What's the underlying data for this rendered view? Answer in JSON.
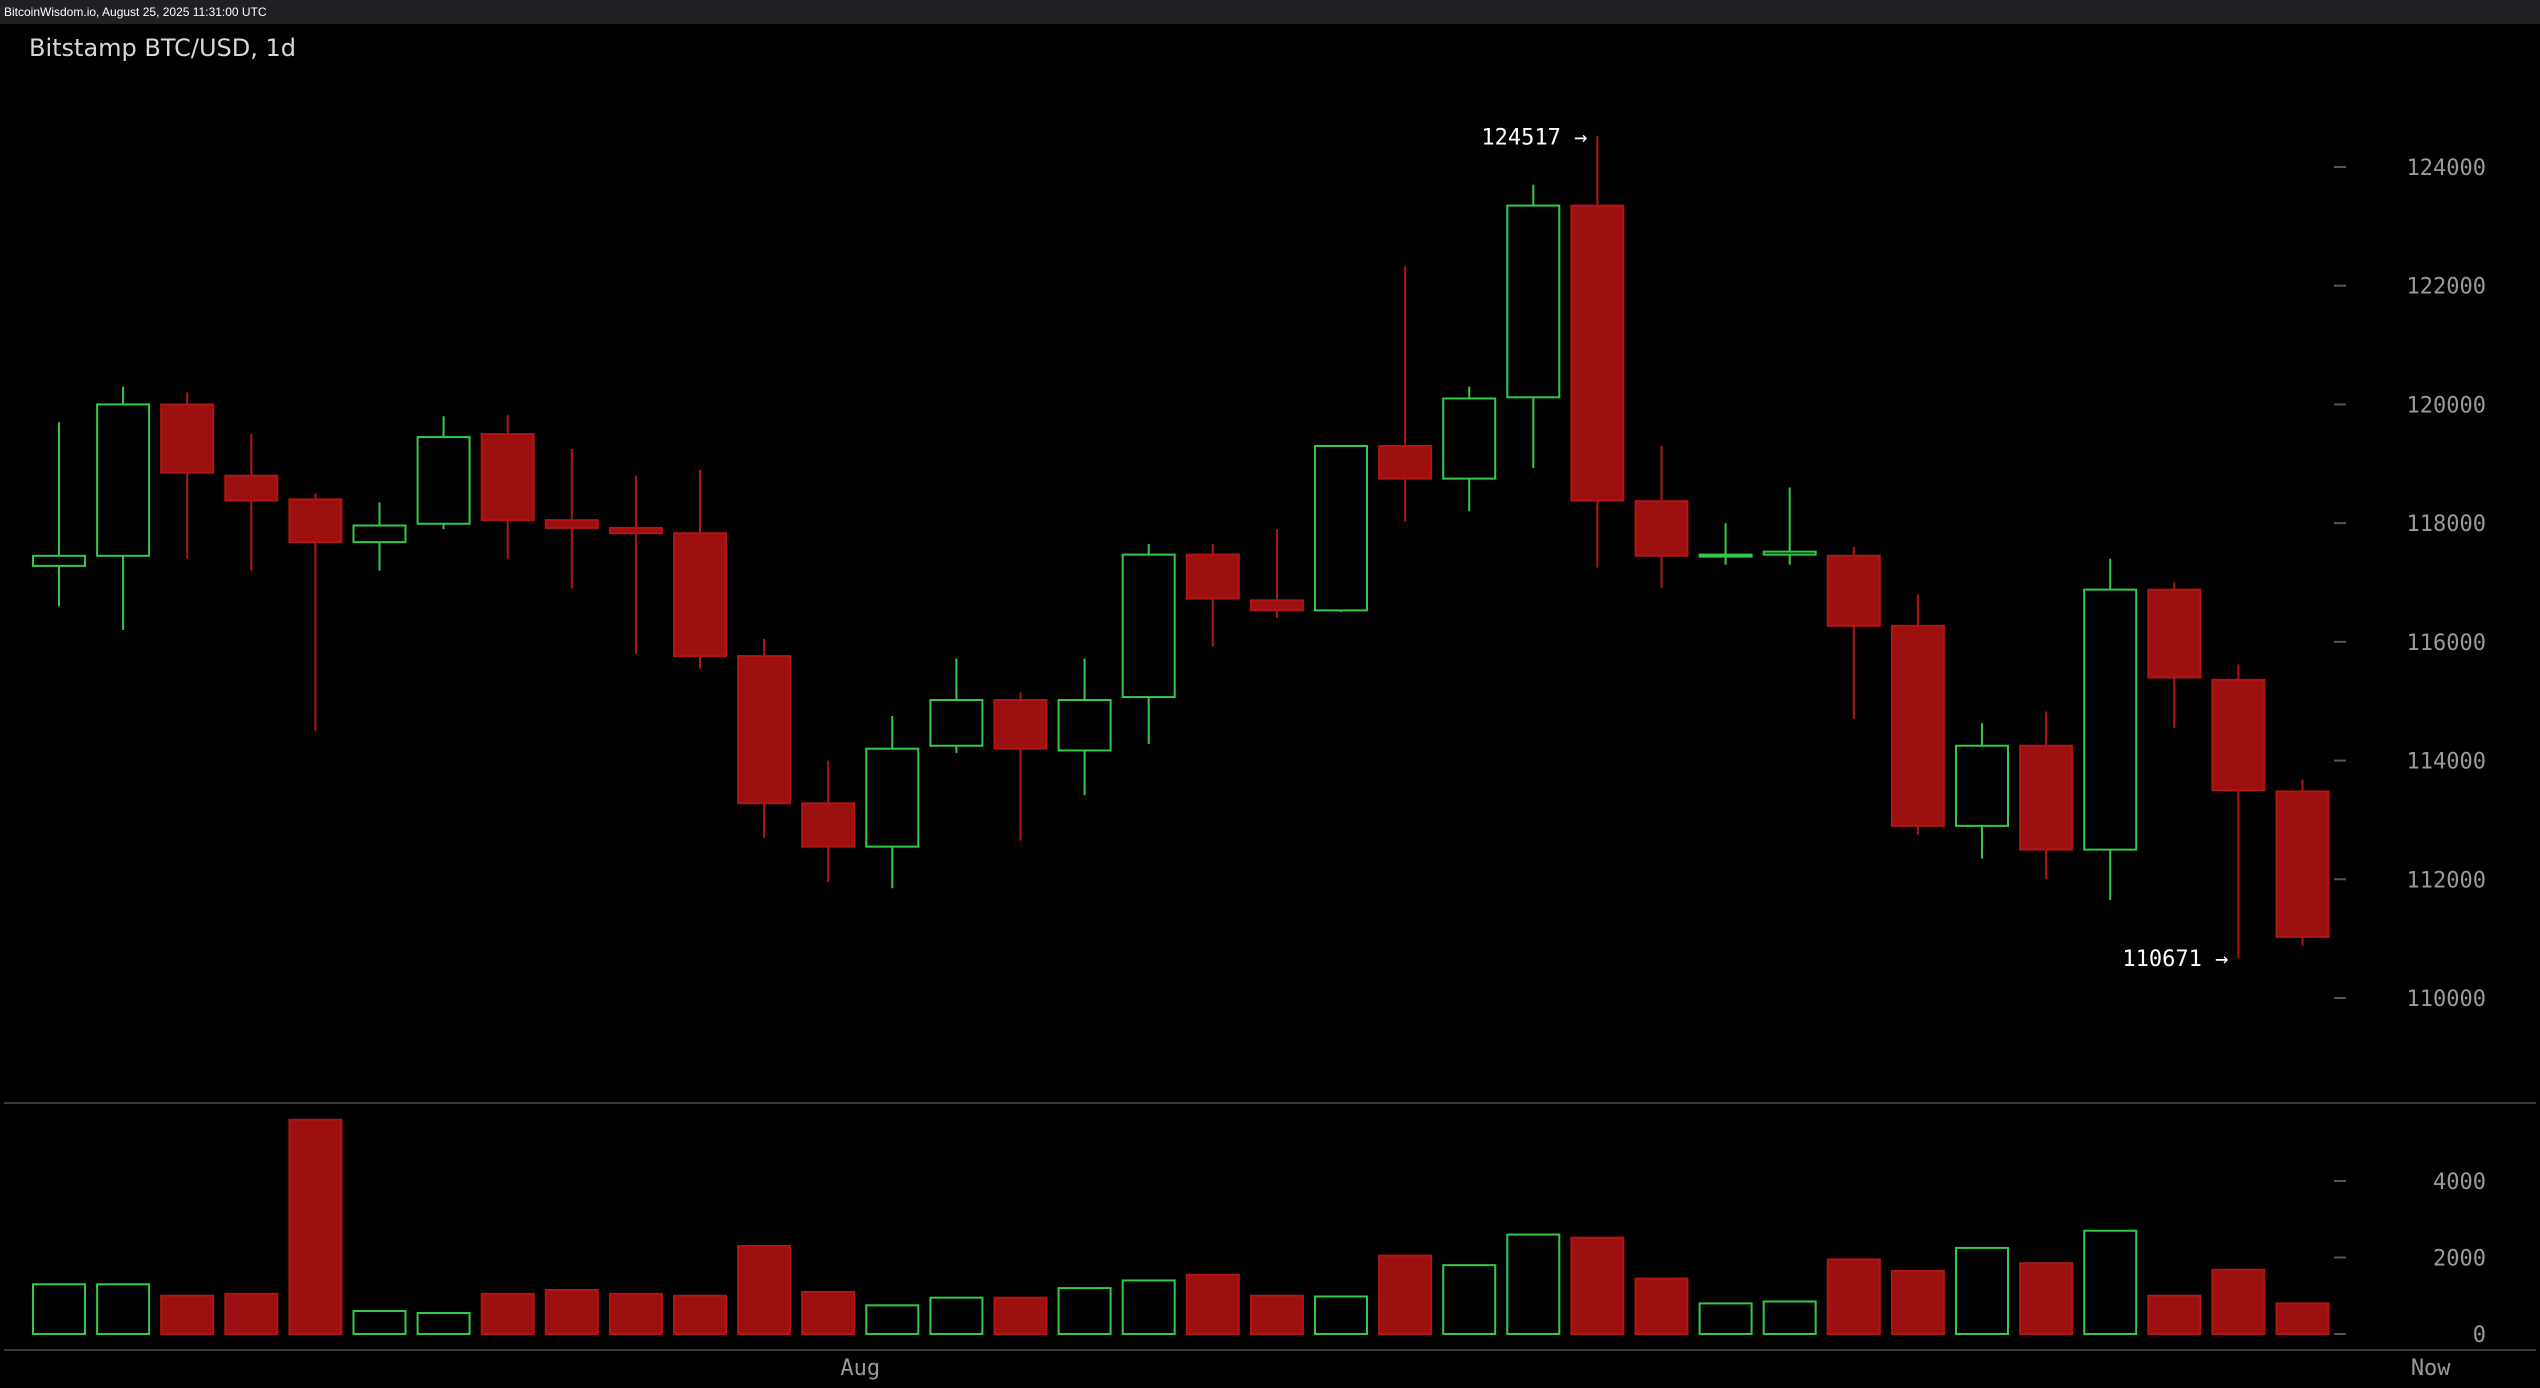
{
  "header": {
    "source_line": "BitcoinWisdom.io, August 25, 2025 11:31:00 UTC",
    "title": "Bitstamp BTC/USD, 1d"
  },
  "colors": {
    "up": "#35c94a",
    "down": "#b01616",
    "down_fill": "#9c1010",
    "background": "#000000",
    "axis_text": "#9a9a9a",
    "annotation": "#ffffff",
    "separator": "#3a3a3a"
  },
  "chart_data": [
    {
      "type": "candlestick",
      "title": "Bitstamp BTC/USD, 1d",
      "ylim": [
        108000,
        125800
      ],
      "y_ticks": [
        110000,
        112000,
        114000,
        116000,
        118000,
        120000,
        122000,
        124000
      ],
      "y_tick_labels": [
        "110000",
        "112000",
        "114000",
        "116000",
        "118000",
        "120000",
        "122000",
        "124000"
      ],
      "grid": false,
      "candles": [
        {
          "o": 117280,
          "h": 119700,
          "l": 116600,
          "c": 117450
        },
        {
          "o": 117450,
          "h": 120300,
          "l": 116200,
          "c": 120000
        },
        {
          "o": 120000,
          "h": 120200,
          "l": 117400,
          "c": 118850
        },
        {
          "o": 118800,
          "h": 119500,
          "l": 117200,
          "c": 118380
        },
        {
          "o": 118400,
          "h": 118500,
          "l": 114500,
          "c": 117680
        },
        {
          "o": 117680,
          "h": 118350,
          "l": 117200,
          "c": 117960
        },
        {
          "o": 117990,
          "h": 119800,
          "l": 117900,
          "c": 119450
        },
        {
          "o": 119500,
          "h": 119820,
          "l": 117400,
          "c": 118050
        },
        {
          "o": 118050,
          "h": 119250,
          "l": 116900,
          "c": 117920
        },
        {
          "o": 117920,
          "h": 118800,
          "l": 115800,
          "c": 117830
        },
        {
          "o": 117830,
          "h": 118900,
          "l": 115550,
          "c": 115760
        },
        {
          "o": 115760,
          "h": 116050,
          "l": 112700,
          "c": 113280
        },
        {
          "o": 113280,
          "h": 114000,
          "l": 111950,
          "c": 112550
        },
        {
          "o": 112550,
          "h": 114750,
          "l": 111850,
          "c": 114200
        },
        {
          "o": 114250,
          "h": 115720,
          "l": 114130,
          "c": 115020
        },
        {
          "o": 115020,
          "h": 115150,
          "l": 112650,
          "c": 114200
        },
        {
          "o": 114170,
          "h": 115720,
          "l": 113420,
          "c": 115020
        },
        {
          "o": 115070,
          "h": 117650,
          "l": 114280,
          "c": 117470
        },
        {
          "o": 117470,
          "h": 117650,
          "l": 115920,
          "c": 116730
        },
        {
          "o": 116700,
          "h": 117900,
          "l": 116400,
          "c": 116530
        },
        {
          "o": 116530,
          "h": 119300,
          "l": 116500,
          "c": 119300
        },
        {
          "o": 119300,
          "h": 122330,
          "l": 118030,
          "c": 118750
        },
        {
          "o": 118750,
          "h": 120300,
          "l": 118200,
          "c": 120100
        },
        {
          "o": 120120,
          "h": 123700,
          "l": 118930,
          "c": 123350
        },
        {
          "o": 123350,
          "h": 124517,
          "l": 117250,
          "c": 118380
        },
        {
          "o": 118370,
          "h": 119300,
          "l": 116900,
          "c": 117450
        },
        {
          "o": 117450,
          "h": 118000,
          "l": 117300,
          "c": 117470
        },
        {
          "o": 117470,
          "h": 118600,
          "l": 117300,
          "c": 117520
        },
        {
          "o": 117450,
          "h": 117600,
          "l": 114700,
          "c": 116270
        },
        {
          "o": 116270,
          "h": 116800,
          "l": 112750,
          "c": 112900
        },
        {
          "o": 112900,
          "h": 114630,
          "l": 112350,
          "c": 114250
        },
        {
          "o": 114250,
          "h": 114830,
          "l": 112000,
          "c": 112500
        },
        {
          "o": 112500,
          "h": 117400,
          "l": 111650,
          "c": 116880
        },
        {
          "o": 116880,
          "h": 117000,
          "l": 114550,
          "c": 115400
        },
        {
          "o": 115360,
          "h": 115620,
          "l": 110671,
          "c": 113500
        },
        {
          "o": 113480,
          "h": 113680,
          "l": 110880,
          "c": 111030
        }
      ],
      "annotations": [
        {
          "text": "124517 →",
          "value": 124517,
          "candle": 24
        },
        {
          "text": "110671 →",
          "value": 110671,
          "candle": 34
        }
      ]
    },
    {
      "type": "bar",
      "title": "",
      "ylim": [
        0,
        5600
      ],
      "y_ticks": [
        0,
        2000,
        4000
      ],
      "y_tick_labels": [
        "0",
        "2000",
        "4000"
      ],
      "x_tick_labels": [
        {
          "label": "Aug",
          "candle": 12.5
        },
        {
          "label": "Now",
          "candle": 37
        }
      ],
      "values": [
        1300,
        1300,
        1000,
        1050,
        5600,
        600,
        550,
        1050,
        1150,
        1050,
        1000,
        2300,
        1100,
        750,
        950,
        950,
        1200,
        1400,
        1550,
        1000,
        980,
        2050,
        1800,
        2600,
        2520,
        1450,
        800,
        850,
        1950,
        1650,
        2250,
        1850,
        2700,
        1000,
        1680,
        800
      ],
      "directions": [
        "up",
        "up",
        "down",
        "down",
        "down",
        "up",
        "up",
        "down",
        "down",
        "down",
        "down",
        "down",
        "down",
        "up",
        "up",
        "down",
        "up",
        "up",
        "down",
        "down",
        "up",
        "down",
        "up",
        "up",
        "down",
        "down",
        "up",
        "up",
        "down",
        "down",
        "up",
        "down",
        "up",
        "down",
        "down",
        "down"
      ]
    }
  ]
}
